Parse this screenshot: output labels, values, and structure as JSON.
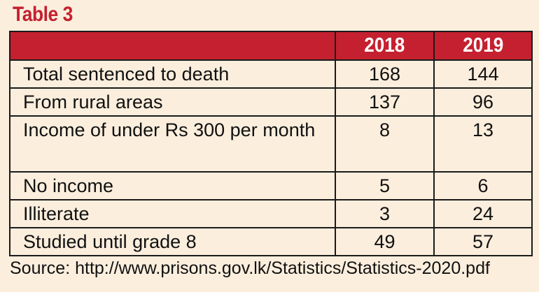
{
  "title": "Table 3",
  "chart_data": {
    "type": "table",
    "columns": [
      "",
      "2018",
      "2019"
    ],
    "rows": [
      {
        "label": "Total sentenced to death",
        "values": [
          "168",
          "144"
        ]
      },
      {
        "label": "From rural areas",
        "values": [
          "137",
          "96"
        ]
      },
      {
        "label": "Income of under Rs 300 per month",
        "values": [
          "8",
          "13"
        ]
      },
      {
        "label": "No income",
        "values": [
          "5",
          "6"
        ]
      },
      {
        "label": "Illiterate",
        "values": [
          "3",
          "24"
        ]
      },
      {
        "label": "Studied until grade 8",
        "values": [
          "49",
          "57"
        ]
      }
    ]
  },
  "source": "Source: http://www.prisons.gov.lk/Statistics/Statistics-2020.pdf",
  "colors": {
    "header_bg": "#c5202f",
    "title": "#c5202f",
    "background": "#fbeedd"
  }
}
